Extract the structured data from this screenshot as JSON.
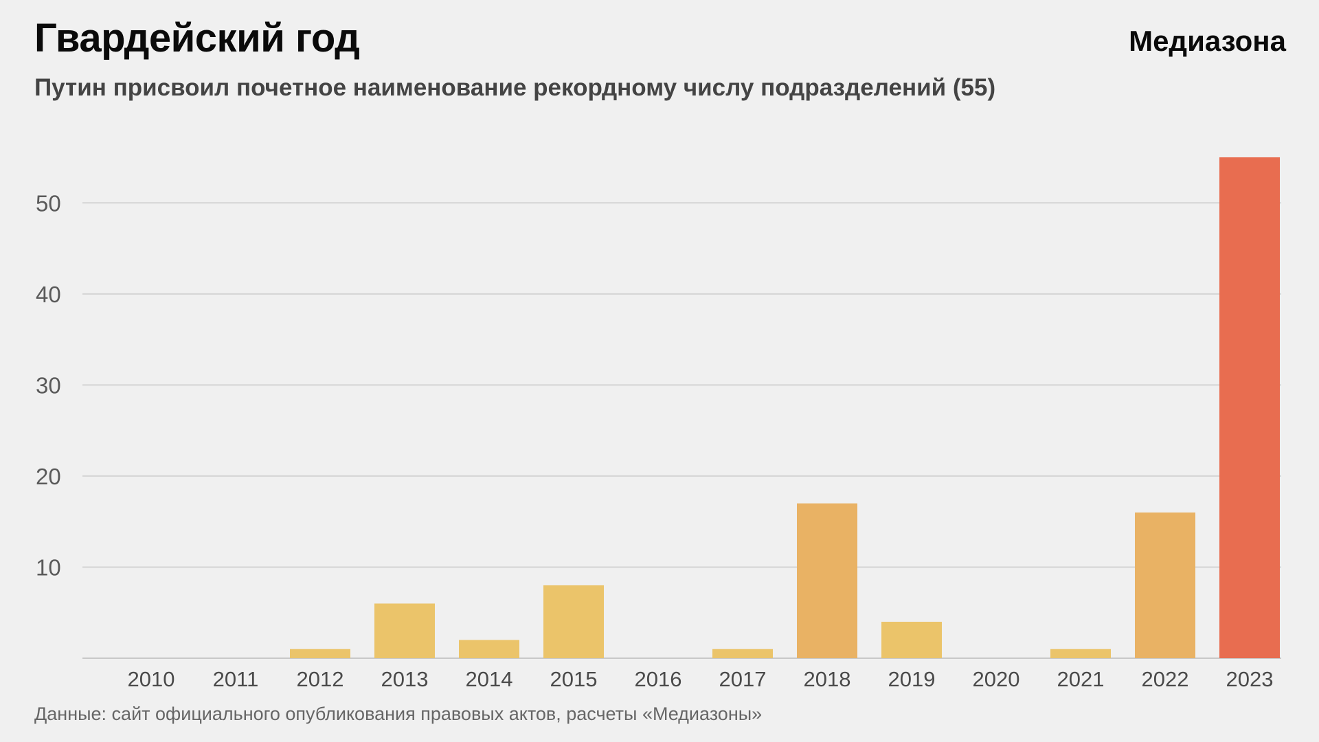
{
  "header": {
    "title": "Гвардейский год",
    "subtitle": "Путин присвоил почетное наименование рекордному числу подразделений (55)",
    "brand": "Медиазона"
  },
  "footer": {
    "source": "Данные: сайт официального опубликования правовых актов, расчеты «Медиазоны»"
  },
  "chart_data": {
    "type": "bar",
    "categories": [
      "2010",
      "2011",
      "2012",
      "2013",
      "2014",
      "2015",
      "2016",
      "2017",
      "2018",
      "2019",
      "2020",
      "2021",
      "2022",
      "2023"
    ],
    "values": [
      0,
      0,
      1,
      6,
      2,
      8,
      0,
      1,
      17,
      4,
      0,
      1,
      16,
      55
    ],
    "title": "Гвардейский год",
    "subtitle": "Путин присвоил почетное наименование рекордному числу подразделений (55)",
    "xlabel": "",
    "ylabel": "",
    "ylim": [
      0,
      55
    ],
    "yticks": [
      "10",
      "20",
      "30",
      "40",
      "50"
    ],
    "grid": true,
    "legend": "none",
    "colors": {
      "low": "#ebc46a",
      "mid": "#e9b264",
      "high": "#e86d50",
      "grid": "#d4d4d4",
      "axis": "#c8c8c8"
    }
  }
}
